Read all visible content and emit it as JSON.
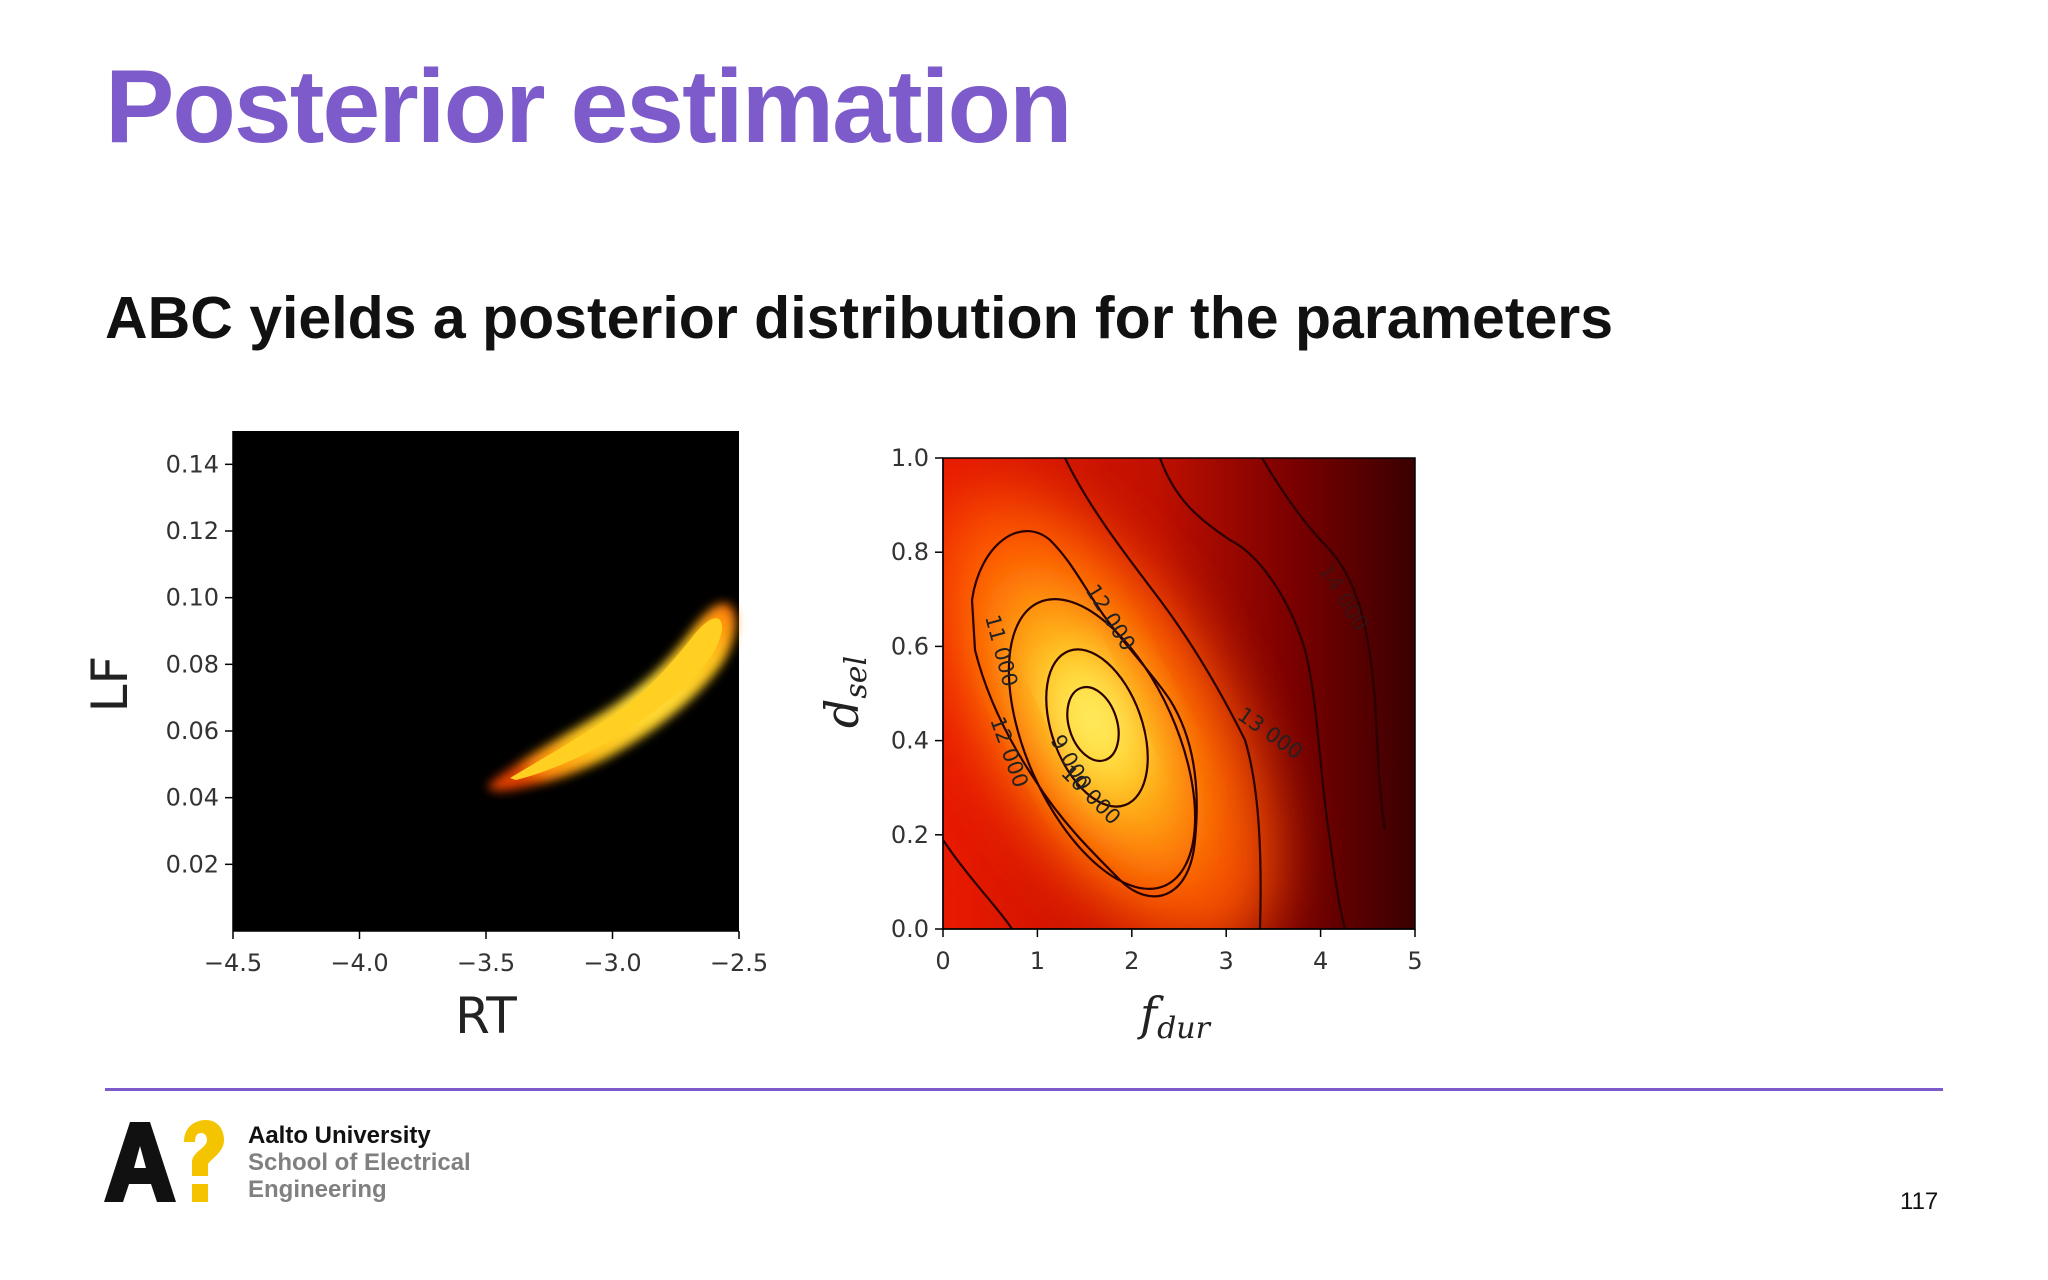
{
  "slide": {
    "title": "Posterior estimation",
    "subtitle": "ABC yields a posterior distribution for the parameters",
    "page_number": "117"
  },
  "logo": {
    "mark_letters": "A?",
    "university": "Aalto University",
    "school_line1": "School of Electrical",
    "school_line2": "Engineering",
    "colors": {
      "letter": "#111111",
      "question_mark": "#f5c400"
    }
  },
  "colors": {
    "accent": "#7e5bcb",
    "text": "#111111"
  },
  "chart_data": [
    {
      "type": "heatmap",
      "xlabel": "RT",
      "ylabel": "LF",
      "xlim": [
        -4.5,
        -2.5
      ],
      "ylim": [
        0.0,
        0.15
      ],
      "x_ticks": [
        -4.5,
        -4.0,
        -3.5,
        -3.0,
        -2.5
      ],
      "x_tick_labels": [
        "−4.5",
        "−4.0",
        "−3.5",
        "−3.0",
        "−2.5"
      ],
      "y_ticks": [
        0.02,
        0.04,
        0.06,
        0.08,
        0.1,
        0.12,
        0.14
      ],
      "y_tick_labels": [
        "0.02",
        "0.04",
        "0.06",
        "0.08",
        "0.10",
        "0.12",
        "0.14"
      ],
      "colormap": "hot",
      "background": "#000000",
      "region": {
        "description_points_xy": [
          [
            -3.5,
            0.044
          ],
          [
            -2.6,
            0.093
          ]
        ],
        "peak_color": "#ffd21f"
      },
      "grid": false
    },
    {
      "type": "heatmap",
      "xlabel": "f_dur",
      "ylabel": "d_sel",
      "xlim": [
        0,
        5
      ],
      "ylim": [
        0.0,
        1.0
      ],
      "x_ticks": [
        0,
        1,
        2,
        3,
        4,
        5
      ],
      "x_tick_labels": [
        "0",
        "1",
        "2",
        "3",
        "4",
        "5"
      ],
      "y_ticks": [
        0.0,
        0.2,
        0.4,
        0.6,
        0.8,
        1.0
      ],
      "y_tick_labels": [
        "0.0",
        "0.2",
        "0.4",
        "0.6",
        "0.8",
        "1.0"
      ],
      "colormap": "hot",
      "peak": [
        1.55,
        0.44
      ],
      "contour_labels": [
        "12 000",
        "11 000",
        "12 000",
        "9 000",
        "10 000",
        "13 000",
        "14 000"
      ],
      "grid": false
    }
  ]
}
